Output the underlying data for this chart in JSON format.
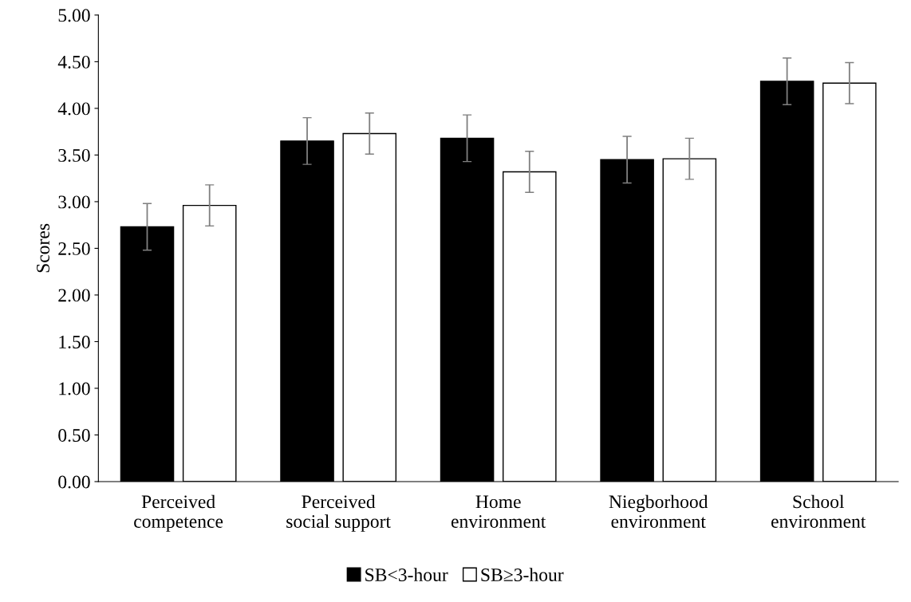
{
  "chart_data": {
    "type": "bar",
    "ylabel": "Scores",
    "categories": [
      "Perceived\ncompetence",
      "Perceived\nsocial support",
      "Home\nenvironment",
      "Niegborhood\nenvironment",
      "School\nenvironment"
    ],
    "series": [
      {
        "name": "SB<3-hour",
        "color": "#000000",
        "values": [
          2.73,
          3.65,
          3.68,
          3.45,
          4.29
        ],
        "errors": [
          0.25,
          0.25,
          0.25,
          0.25,
          0.25
        ]
      },
      {
        "name": "SB≥3-hour",
        "color": "#ffffff",
        "values": [
          2.96,
          3.73,
          3.32,
          3.46,
          4.27
        ],
        "errors": [
          0.22,
          0.22,
          0.22,
          0.22,
          0.22
        ]
      }
    ],
    "ylim": [
      0,
      5
    ],
    "yticks": [
      {
        "value": 0,
        "label": "0.00"
      },
      {
        "value": 0.5,
        "label": "0.50"
      },
      {
        "value": 1,
        "label": "1.00"
      },
      {
        "value": 1.5,
        "label": "1.50"
      },
      {
        "value": 2,
        "label": "2.00"
      },
      {
        "value": 2.5,
        "label": "2.50"
      },
      {
        "value": 3,
        "label": "3.00"
      },
      {
        "value": 3.5,
        "label": "3.50"
      },
      {
        "value": 4,
        "label": "4.00"
      },
      {
        "value": 4.5,
        "label": "4.50"
      },
      {
        "value": 5,
        "label": "5.00"
      }
    ],
    "legend": "bottom",
    "grid": false
  }
}
